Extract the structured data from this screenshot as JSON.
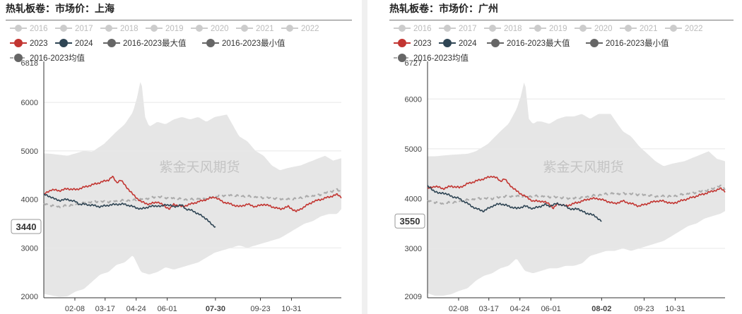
{
  "chart_data": [
    {
      "type": "line",
      "title": "热轧板卷：市场价：上海",
      "y_top_label": "6818",
      "y_bottom_label": "2000",
      "ylim": [
        1970,
        6818
      ],
      "yticks": [
        3000,
        4000,
        5000,
        6000
      ],
      "xlim": [
        1,
        365
      ],
      "x_ticks": [
        "02-08",
        "03-17",
        "04-24",
        "06-01",
        "07-30",
        "09-23",
        "10-31"
      ],
      "x_tick_days": [
        39,
        76,
        114,
        152,
        211,
        266,
        304
      ],
      "highlight_x_label": "07-30",
      "watermark": "紫金天风期货",
      "value_badge": "3440",
      "legend_hidden": [
        "2016",
        "2017",
        "2018",
        "2019",
        "2020",
        "2021",
        "2022"
      ],
      "series": [
        {
          "name": "2016-2023最大值",
          "type": "area_upper",
          "color": "#e6e6e6",
          "x": [
            1,
            10,
            30,
            50,
            60,
            75,
            90,
            100,
            110,
            115,
            120,
            125,
            130,
            135,
            140,
            150,
            160,
            170,
            180,
            190,
            200,
            210,
            225,
            240,
            250,
            260,
            270,
            280,
            290,
            300,
            315,
            330,
            345,
            355,
            365
          ],
          "y": [
            4950,
            4940,
            4900,
            5000,
            4980,
            5150,
            5400,
            5550,
            5800,
            6100,
            6500,
            5700,
            5500,
            5550,
            5600,
            5550,
            5650,
            5700,
            5650,
            5700,
            5600,
            5700,
            5750,
            5300,
            5200,
            5000,
            4900,
            4700,
            4600,
            4650,
            4700,
            4800,
            4900,
            4800,
            4850
          ]
        },
        {
          "name": "2016-2023最小值",
          "type": "area_lower",
          "color": "#e6e6e6",
          "x": [
            1,
            10,
            20,
            30,
            40,
            50,
            60,
            70,
            80,
            90,
            100,
            110,
            120,
            130,
            140,
            150,
            160,
            170,
            180,
            190,
            200,
            210,
            220,
            230,
            240,
            250,
            260,
            270,
            280,
            290,
            300,
            310,
            320,
            330,
            340,
            350,
            360,
            365
          ],
          "y": [
            2050,
            2020,
            1990,
            2000,
            2100,
            2150,
            2300,
            2450,
            2500,
            2650,
            2700,
            2850,
            2500,
            2450,
            2500,
            2600,
            2550,
            2600,
            2650,
            2700,
            2800,
            2900,
            2950,
            3000,
            3050,
            3000,
            3050,
            3100,
            3150,
            3200,
            3300,
            3400,
            3500,
            3550,
            3650,
            3700,
            3700,
            3800
          ]
        },
        {
          "name": "2023",
          "color": "#c23531",
          "x": [
            1,
            10,
            20,
            30,
            40,
            50,
            60,
            70,
            80,
            85,
            90,
            95,
            100,
            110,
            120,
            130,
            140,
            150,
            155,
            160,
            170,
            180,
            190,
            200,
            210,
            220,
            230,
            240,
            250,
            260,
            270,
            280,
            290,
            300,
            310,
            320,
            330,
            340,
            350,
            360,
            365
          ],
          "y": [
            4100,
            4200,
            4180,
            4220,
            4200,
            4250,
            4300,
            4350,
            4400,
            4470,
            4350,
            4400,
            4300,
            4100,
            3950,
            3900,
            3950,
            3850,
            3800,
            3900,
            3850,
            3900,
            3950,
            4000,
            4050,
            3950,
            3900,
            3850,
            3900,
            3850,
            3900,
            3850,
            3800,
            3850,
            3750,
            3850,
            3950,
            4000,
            4050,
            4100,
            4050
          ]
        },
        {
          "name": "2024",
          "color": "#2f4554",
          "x": [
            1,
            10,
            15,
            20,
            30,
            40,
            45,
            50,
            60,
            70,
            80,
            90,
            100,
            110,
            120,
            130,
            140,
            145,
            150,
            160,
            170,
            175,
            180,
            185,
            190,
            195,
            200,
            205,
            208,
            211
          ],
          "y": [
            4100,
            4050,
            4000,
            3980,
            4000,
            3950,
            3900,
            3900,
            3880,
            3850,
            3880,
            3900,
            3900,
            3850,
            3800,
            3850,
            3870,
            3850,
            3900,
            3850,
            3880,
            3800,
            3780,
            3750,
            3700,
            3650,
            3600,
            3500,
            3460,
            3440
          ]
        },
        {
          "name": "2016-2023均值",
          "color": "#aaaaaa",
          "dashed": true,
          "x": [
            1,
            20,
            40,
            60,
            80,
            100,
            120,
            140,
            160,
            180,
            200,
            220,
            240,
            260,
            280,
            300,
            320,
            340,
            350,
            360,
            365
          ],
          "y": [
            3900,
            3850,
            3900,
            3950,
            3950,
            3980,
            4000,
            4050,
            4020,
            4000,
            4020,
            4080,
            4080,
            4050,
            4020,
            4000,
            4050,
            4100,
            4150,
            4200,
            4150
          ]
        }
      ]
    },
    {
      "type": "line",
      "title": "热轧板卷：市场价：广州",
      "y_top_label": "6727",
      "y_bottom_label": "2009",
      "ylim": [
        2009,
        6727
      ],
      "yticks": [
        3000,
        4000,
        5000,
        6000
      ],
      "xlim": [
        1,
        365
      ],
      "x_ticks": [
        "02-08",
        "03-17",
        "04-24",
        "06-01",
        "08-02",
        "09-23",
        "10-31"
      ],
      "x_tick_days": [
        39,
        76,
        114,
        152,
        214,
        266,
        304
      ],
      "highlight_x_label": "08-02",
      "watermark": "紫金天风期货",
      "value_badge": "3550",
      "legend_hidden": [
        "2016",
        "2017",
        "2018",
        "2019",
        "2020",
        "2021",
        "2022"
      ],
      "series": [
        {
          "name": "2016-2023最大值",
          "type": "area_upper",
          "color": "#e6e6e6",
          "x": [
            1,
            10,
            30,
            50,
            60,
            75,
            90,
            100,
            110,
            115,
            120,
            125,
            130,
            135,
            140,
            150,
            160,
            170,
            180,
            190,
            200,
            210,
            225,
            240,
            250,
            260,
            270,
            280,
            290,
            300,
            315,
            330,
            345,
            355,
            365
          ],
          "y": [
            4850,
            4850,
            4880,
            4900,
            4950,
            5100,
            5350,
            5500,
            5800,
            6050,
            6400,
            5600,
            5500,
            5550,
            5550,
            5500,
            5600,
            5650,
            5650,
            5700,
            5600,
            5700,
            5700,
            5350,
            5250,
            5050,
            4900,
            4750,
            4650,
            4700,
            4750,
            4850,
            4950,
            4800,
            4750
          ]
        },
        {
          "name": "2016-2023最小值",
          "type": "area_lower",
          "color": "#e6e6e6",
          "x": [
            1,
            10,
            20,
            30,
            40,
            50,
            60,
            70,
            80,
            90,
            100,
            110,
            120,
            130,
            140,
            150,
            160,
            170,
            180,
            190,
            200,
            210,
            220,
            230,
            240,
            250,
            260,
            270,
            280,
            290,
            300,
            310,
            320,
            330,
            340,
            350,
            360,
            365
          ],
          "y": [
            2100,
            2050,
            2050,
            2080,
            2150,
            2200,
            2350,
            2450,
            2500,
            2600,
            2650,
            2800,
            2550,
            2500,
            2550,
            2600,
            2600,
            2650,
            2650,
            2700,
            2850,
            2900,
            2950,
            2950,
            3000,
            2950,
            3000,
            3050,
            3100,
            3150,
            3250,
            3350,
            3450,
            3500,
            3600,
            3650,
            3700,
            3750
          ]
        },
        {
          "name": "2023",
          "color": "#c23531",
          "x": [
            1,
            10,
            20,
            30,
            40,
            50,
            60,
            70,
            80,
            85,
            90,
            95,
            100,
            110,
            120,
            130,
            140,
            150,
            155,
            160,
            170,
            180,
            190,
            200,
            210,
            220,
            230,
            240,
            250,
            260,
            270,
            280,
            290,
            300,
            310,
            320,
            330,
            340,
            350,
            360,
            365
          ],
          "y": [
            4200,
            4250,
            4200,
            4250,
            4220,
            4300,
            4350,
            4400,
            4450,
            4420,
            4350,
            4400,
            4300,
            4150,
            4050,
            3950,
            3950,
            3900,
            3800,
            3900,
            3850,
            3900,
            3950,
            4000,
            4000,
            3950,
            3900,
            3950,
            3900,
            3850,
            3900,
            3950,
            3950,
            3900,
            3950,
            4000,
            4050,
            4100,
            4150,
            4200,
            4150
          ]
        },
        {
          "name": "2024",
          "color": "#2f4554",
          "x": [
            1,
            5,
            10,
            15,
            20,
            30,
            40,
            45,
            50,
            60,
            70,
            80,
            90,
            100,
            110,
            120,
            130,
            140,
            145,
            150,
            160,
            170,
            175,
            180,
            185,
            190,
            195,
            200,
            205,
            210,
            214
          ],
          "y": [
            4250,
            4200,
            4150,
            4100,
            4120,
            4050,
            4000,
            3950,
            3900,
            3800,
            3750,
            3850,
            3900,
            3850,
            3800,
            3850,
            3800,
            3850,
            3880,
            3850,
            3900,
            3850,
            3800,
            3780,
            3800,
            3750,
            3700,
            3700,
            3650,
            3600,
            3550
          ]
        },
        {
          "name": "2016-2023均值",
          "color": "#aaaaaa",
          "dashed": true,
          "x": [
            1,
            20,
            40,
            60,
            80,
            100,
            120,
            140,
            160,
            180,
            200,
            220,
            240,
            260,
            280,
            300,
            320,
            340,
            350,
            360,
            365
          ],
          "y": [
            3950,
            3900,
            3950,
            4000,
            4000,
            4050,
            4050,
            4050,
            4020,
            4000,
            4050,
            4100,
            4100,
            4080,
            4050,
            4050,
            4100,
            4150,
            4200,
            4250,
            4200
          ]
        }
      ]
    }
  ]
}
